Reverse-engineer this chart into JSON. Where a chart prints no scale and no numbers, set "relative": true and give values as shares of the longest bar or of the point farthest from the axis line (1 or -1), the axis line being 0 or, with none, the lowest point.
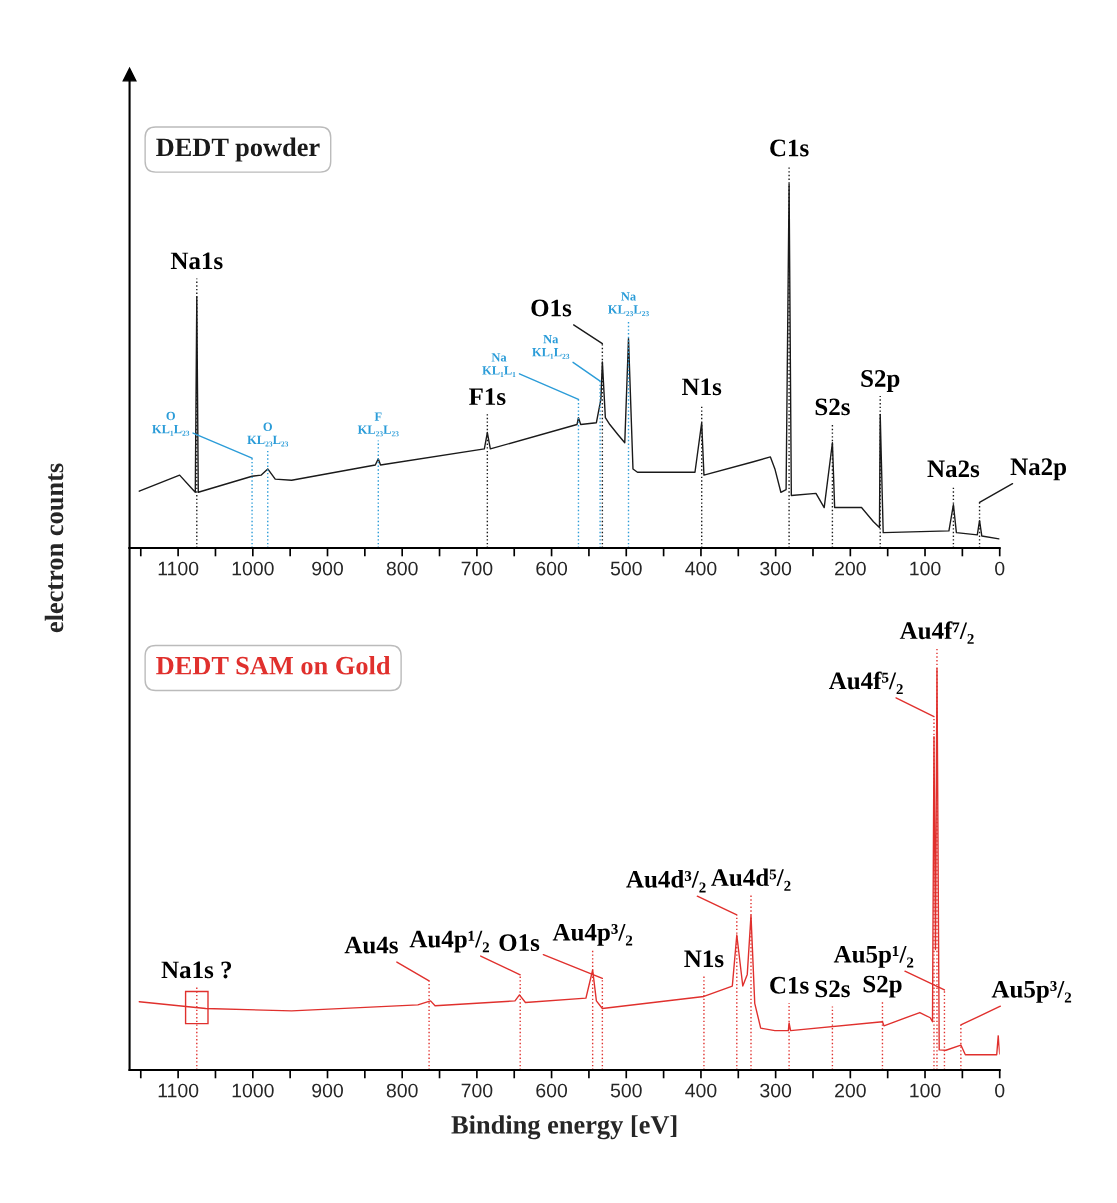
{
  "chart_data": [
    {
      "type": "line",
      "title": "DEDT powder",
      "ylabel": "electron counts",
      "relative": true,
      "xlim": [
        1165,
        0
      ],
      "xticks": [
        {
          "value": 1150,
          "label": null
        },
        1100,
        {
          "value": 1050,
          "label": null
        },
        1000,
        {
          "value": 950,
          "label": null
        },
        900,
        {
          "value": 850,
          "label": null
        },
        800,
        {
          "value": 750,
          "label": null
        },
        700,
        {
          "value": 650,
          "label": null
        },
        600,
        {
          "value": 550,
          "label": null
        },
        500,
        {
          "value": 450,
          "label": null
        },
        400,
        {
          "value": 350,
          "label": null
        },
        300,
        {
          "value": 250,
          "label": null
        },
        200,
        {
          "value": 150,
          "label": null
        },
        100,
        {
          "value": 50,
          "label": null
        },
        0
      ],
      "series": [
        {
          "color": "#1a1a1a",
          "x": [
            1152,
            1098,
            1082,
            1077,
            1075,
            1073,
            1001,
            989,
            980,
            970,
            948,
            836,
            832,
            829,
            690,
            686,
            682,
            566,
            564,
            561,
            540,
            534,
            532,
            528,
            522,
            511,
            502,
            497,
            491,
            485,
            408,
            399,
            396,
            331,
            307,
            301,
            293,
            286,
            282,
            279,
            246,
            235,
            224,
            221,
            185,
            169,
            161,
            160,
            156,
            68,
            62,
            58,
            30,
            27,
            24,
            1
          ],
          "values": [
            0.156,
            0.2,
            0.164,
            0.153,
            0.69,
            0.153,
            0.197,
            0.2,
            0.217,
            0.189,
            0.186,
            0.228,
            0.245,
            0.228,
            0.272,
            0.317,
            0.272,
            0.339,
            0.358,
            0.339,
            0.344,
            0.408,
            0.511,
            0.358,
            0.339,
            0.311,
            0.289,
            0.575,
            0.217,
            0.208,
            0.208,
            0.344,
            0.2,
            0.236,
            0.25,
            0.217,
            0.153,
            0.16,
            1.0,
            0.144,
            0.15,
            0.111,
            0.289,
            0.111,
            0.111,
            0.072,
            0.056,
            0.367,
            0.042,
            0.047,
            0.119,
            0.042,
            0.036,
            0.075,
            0.033,
            0.025
          ]
        }
      ],
      "ref_lines": [
        {
          "axis": "x",
          "value": 1075,
          "label": "Na1s",
          "color": "#1a1a1a",
          "line_style": "dotted"
        },
        {
          "axis": "x",
          "value": 686,
          "label": "F1s",
          "color": "#1a1a1a",
          "line_style": "dotted"
        },
        {
          "axis": "x",
          "value": 532,
          "label": "O1s",
          "color": "#1a1a1a",
          "line_style": "dotted"
        },
        {
          "axis": "x",
          "value": 399,
          "label": "N1s",
          "color": "#1a1a1a",
          "line_style": "dotted"
        },
        {
          "axis": "x",
          "value": 282,
          "label": "C1s",
          "color": "#1a1a1a",
          "line_style": "dotted"
        },
        {
          "axis": "x",
          "value": 224,
          "label": "S2s",
          "color": "#1a1a1a",
          "line_style": "dotted"
        },
        {
          "axis": "x",
          "value": 160,
          "label": "S2p",
          "color": "#1a1a1a",
          "line_style": "dotted"
        },
        {
          "axis": "x",
          "value": 62,
          "label": "Na2s",
          "color": "#1a1a1a",
          "line_style": "dotted"
        },
        {
          "axis": "x",
          "value": 27,
          "label": "Na2p",
          "color": "#1a1a1a",
          "line_style": "dotted"
        },
        {
          "axis": "x",
          "value": 1001,
          "label": "O\nKL₁L₂₃",
          "color": "#2b9cd8",
          "line_style": "dotted"
        },
        {
          "axis": "x",
          "value": 980,
          "label": "O\nKL₂₃L₂₃",
          "color": "#2b9cd8",
          "line_style": "dotted"
        },
        {
          "axis": "x",
          "value": 832,
          "label": "F\nKL₂₃L₂₃",
          "color": "#2b9cd8",
          "line_style": "dotted"
        },
        {
          "axis": "x",
          "value": 564,
          "label": "Na\nKL₁L₁",
          "color": "#2b9cd8",
          "line_style": "dotted"
        },
        {
          "axis": "x",
          "value": 535,
          "label": "Na\nKL₁L₂₃",
          "color": "#2b9cd8",
          "line_style": "dotted"
        },
        {
          "axis": "x",
          "value": 497,
          "label": "Na\nKL₂₃L₂₃",
          "color": "#2b9cd8",
          "line_style": "dotted"
        }
      ]
    },
    {
      "type": "line",
      "title": "DEDT SAM on Gold",
      "xlabel": "Binding energy [eV]",
      "relative": true,
      "xlim": [
        1165,
        0
      ],
      "xticks": [
        {
          "value": 1150,
          "label": null
        },
        1100,
        {
          "value": 1050,
          "label": null
        },
        1000,
        {
          "value": 950,
          "label": null
        },
        900,
        {
          "value": 850,
          "label": null
        },
        800,
        {
          "value": 750,
          "label": null
        },
        700,
        {
          "value": 650,
          "label": null
        },
        600,
        {
          "value": 550,
          "label": null
        },
        500,
        {
          "value": 450,
          "label": null
        },
        400,
        {
          "value": 350,
          "label": null
        },
        300,
        {
          "value": 250,
          "label": null
        },
        200,
        {
          "value": 150,
          "label": null
        },
        100,
        {
          "value": 50,
          "label": null
        },
        0
      ],
      "series": [
        {
          "color": "#e0302d",
          "x": [
            1152,
            1063,
            948,
            779,
            762,
            756,
            649,
            643,
            635,
            554,
            545,
            540,
            532,
            396,
            358,
            352,
            344,
            338,
            333,
            328,
            320,
            301,
            283,
            282,
            280,
            157,
            155,
            107,
            93,
            90,
            88,
            86,
            84,
            81,
            72,
            52,
            46,
            8,
            4,
            2,
            0
          ],
          "values": [
            0.17,
            0.153,
            0.147,
            0.162,
            0.172,
            0.16,
            0.172,
            0.187,
            0.168,
            0.179,
            0.249,
            0.172,
            0.153,
            0.183,
            0.209,
            0.336,
            0.209,
            0.238,
            0.385,
            0.166,
            0.104,
            0.098,
            0.098,
            0.117,
            0.098,
            0.12,
            0.11,
            0.143,
            0.13,
            0.12,
            0.83,
            0.3,
            1.0,
            0.05,
            0.049,
            0.062,
            0.038,
            0.038,
            0.038,
            0.085,
            0.04
          ]
        }
      ],
      "ref_lines": [
        {
          "axis": "x",
          "value": 1075,
          "label": "Na1s ?",
          "color": "#e0302d",
          "line_style": "dotted"
        },
        {
          "axis": "x",
          "value": 764,
          "label": "Au4s",
          "color": "#e0302d",
          "line_style": "dotted"
        },
        {
          "axis": "x",
          "value": 642,
          "label": "Au4p¹/₂",
          "color": "#e0302d",
          "line_style": "dotted"
        },
        {
          "axis": "x",
          "value": 545,
          "label": "Au4p³/₂",
          "color": "#e0302d",
          "line_style": "dotted"
        },
        {
          "axis": "x",
          "value": 532,
          "label": "O1s",
          "color": "#e0302d",
          "line_style": "dotted"
        },
        {
          "axis": "x",
          "value": 396,
          "label": "N1s",
          "color": "#e0302d",
          "line_style": "dotted"
        },
        {
          "axis": "x",
          "value": 352,
          "label": "Au4d³/₂",
          "color": "#e0302d",
          "line_style": "dotted"
        },
        {
          "axis": "x",
          "value": 333,
          "label": "Au4d⁵/₂",
          "color": "#e0302d",
          "line_style": "dotted"
        },
        {
          "axis": "x",
          "value": 282,
          "label": "C1s",
          "color": "#e0302d",
          "line_style": "dotted"
        },
        {
          "axis": "x",
          "value": 224,
          "label": "S2s",
          "color": "#e0302d",
          "line_style": "dotted"
        },
        {
          "axis": "x",
          "value": 157,
          "label": "S2p",
          "color": "#e0302d",
          "line_style": "dotted"
        },
        {
          "axis": "x",
          "value": 88,
          "label": "Au4f⁵/₂",
          "color": "#e0302d",
          "line_style": "dotted"
        },
        {
          "axis": "x",
          "value": 84,
          "label": "Au4f⁷/₂",
          "color": "#e0302d",
          "line_style": "dotted"
        },
        {
          "axis": "x",
          "value": 74,
          "label": "Au5p¹/₂",
          "color": "#e0302d",
          "line_style": "dotted"
        },
        {
          "axis": "x",
          "value": 52,
          "label": "Au5p³/₂",
          "color": "#e0302d",
          "line_style": "dotted"
        }
      ]
    }
  ]
}
